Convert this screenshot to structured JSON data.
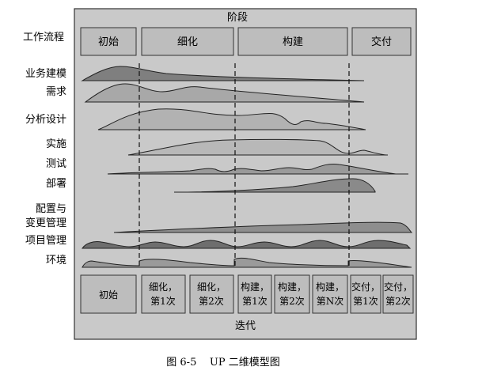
{
  "header": {
    "title": "阶段",
    "workflow_label": "工作流程"
  },
  "phases": [
    "初始",
    "细化",
    "构建",
    "交付"
  ],
  "disciplines": [
    "业务建模",
    "需求",
    "分析设计",
    "实施",
    "测试",
    "部署",
    "配置与",
    "变更管理",
    "项目管理",
    "环境"
  ],
  "iterations": [
    [
      "初始"
    ],
    [
      "细化，",
      "第1次"
    ],
    [
      "细化，",
      "第2次"
    ],
    [
      "构建，",
      "第1次"
    ],
    [
      "构建，",
      "第2次"
    ],
    [
      "构建，",
      "第N次"
    ],
    [
      "交付，",
      "第1次"
    ],
    [
      "交付，",
      "第2次"
    ]
  ],
  "footer_label": "迭代",
  "caption": "图 6-5    UP 二维模型图",
  "colors": {
    "panel": "#c8c8c8",
    "box": "#bdbdbd",
    "hump": "#a0a0a0",
    "hump_dark": "#7a7a7a",
    "line": "#222222"
  }
}
